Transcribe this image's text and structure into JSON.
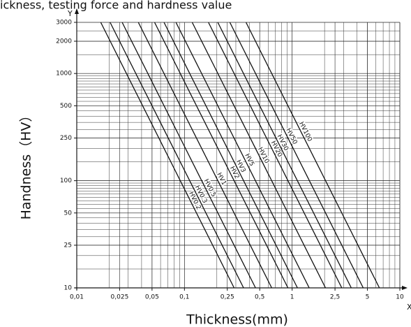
{
  "chart_data": {
    "type": "line",
    "title": "ickness, testing force and hardness value",
    "x_label": "Thickness(mm)",
    "y_label": "Handness（HV）",
    "x_axis_name": "X",
    "y_axis_name": "Y",
    "log_x": true,
    "log_y": true,
    "grid": true,
    "xlim": [
      0.01,
      10
    ],
    "ylim": [
      10,
      3000
    ],
    "xticks": [
      {
        "value": 0.01,
        "label": "0,01"
      },
      {
        "value": 0.025,
        "label": "0,025"
      },
      {
        "value": 0.05,
        "label": "0,05"
      },
      {
        "value": 0.1,
        "label": "0,1"
      },
      {
        "value": 0.25,
        "label": "0,25"
      },
      {
        "value": 0.5,
        "label": "0,5"
      },
      1,
      {
        "value": 2.5,
        "label": "2,5"
      },
      5,
      10
    ],
    "yticks": [
      10,
      25,
      50,
      100,
      250,
      500,
      1000,
      2000,
      3000
    ],
    "series": [
      {
        "name": "HV0.2",
        "color": "#111111",
        "x": [
          0.0167,
          0.289
        ],
        "values": [
          3000,
          10
        ]
      },
      {
        "name": "HV0.3",
        "color": "#111111",
        "x": [
          0.0204,
          0.354
        ],
        "values": [
          3000,
          10
        ]
      },
      {
        "name": "HV0.5",
        "color": "#111111",
        "x": [
          0.0264,
          0.457
        ],
        "values": [
          3000,
          10
        ]
      },
      {
        "name": "HV1",
        "color": "#111111",
        "x": [
          0.0373,
          0.646
        ],
        "values": [
          3000,
          10
        ]
      },
      {
        "name": "HV2",
        "color": "#111111",
        "x": [
          0.0528,
          0.914
        ],
        "values": [
          3000,
          10
        ]
      },
      {
        "name": "HV3",
        "color": "#111111",
        "x": [
          0.0646,
          1.12
        ],
        "values": [
          3000,
          10
        ]
      },
      {
        "name": "HV5",
        "color": "#111111",
        "x": [
          0.0834,
          1.44
        ],
        "values": [
          3000,
          10
        ]
      },
      {
        "name": "HV10",
        "color": "#111111",
        "x": [
          0.118,
          2.04
        ],
        "values": [
          3000,
          10
        ]
      },
      {
        "name": "HV20",
        "color": "#111111",
        "x": [
          0.167,
          2.89
        ],
        "values": [
          3000,
          10
        ]
      },
      {
        "name": "HV30",
        "color": "#111111",
        "x": [
          0.204,
          3.54
        ],
        "values": [
          3000,
          10
        ]
      },
      {
        "name": "HV50",
        "color": "#111111",
        "x": [
          0.264,
          4.57
        ],
        "values": [
          3000,
          10
        ]
      },
      {
        "name": "HV100",
        "color": "#111111",
        "x": [
          0.373,
          6.46
        ],
        "values": [
          3000,
          10
        ]
      }
    ]
  }
}
